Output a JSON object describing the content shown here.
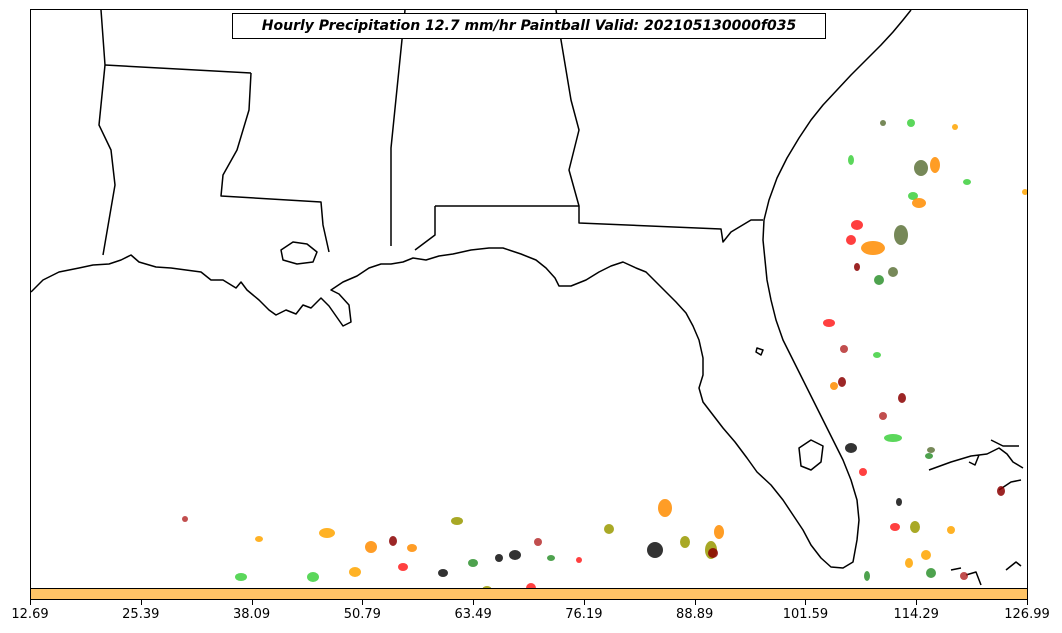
{
  "title": "Hourly Precipitation 12.7 mm/hr Paintball Valid: 202105130000f035",
  "colorbar": {
    "color": "#ffc466",
    "tick_labels": [
      "12.69",
      "25.39",
      "38.09",
      "50.79",
      "63.49",
      "76.19",
      "88.89",
      "101.59",
      "114.29",
      "126.99"
    ]
  },
  "map": {
    "region": "Southeastern United States / Gulf of Mexico",
    "coastline_color": "#000000",
    "paintball_colors": [
      "#ff0000",
      "#ff8c00",
      "#ffa500",
      "#228b22",
      "#32cd32",
      "#8b0000",
      "#556b2f",
      "#9a9a00",
      "#000000",
      "#b22222",
      "#ff6347"
    ]
  }
}
